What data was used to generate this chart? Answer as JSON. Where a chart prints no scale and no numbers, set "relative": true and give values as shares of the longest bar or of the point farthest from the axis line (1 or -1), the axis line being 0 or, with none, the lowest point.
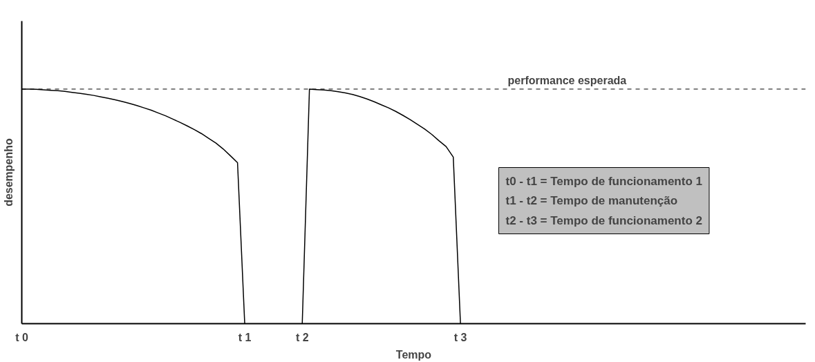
{
  "chart_data": {
    "type": "line",
    "relative": true,
    "ylabel": "desempenho",
    "xlabel": "Tempo",
    "categories": [
      "t 0",
      null,
      null,
      null,
      null,
      null,
      null,
      null,
      null,
      null,
      null,
      null,
      null,
      null,
      null,
      null,
      null,
      null,
      null,
      null,
      null,
      null,
      null,
      null,
      null,
      null,
      null,
      null,
      null,
      null,
      null,
      "t 1",
      null,
      null,
      null,
      null,
      null,
      null,
      null,
      "t 2",
      null,
      null,
      null,
      null,
      null,
      null,
      null,
      null,
      null,
      null,
      null,
      null,
      null,
      null,
      null,
      null,
      null,
      null,
      null,
      null,
      null,
      "t 3",
      null,
      null,
      null,
      null,
      null,
      null,
      null,
      null,
      null,
      null,
      null,
      null,
      null,
      null,
      null,
      null,
      null,
      null,
      null,
      null,
      null,
      null,
      null,
      null,
      null,
      null,
      null,
      null,
      null,
      null,
      null,
      null,
      null,
      null,
      null,
      null,
      null,
      null,
      null,
      null,
      null,
      null,
      null,
      null,
      null,
      null,
      null,
      null
    ],
    "series": [
      {
        "color": "#000000",
        "values": [
          1,
          1,
          0.999,
          0.997,
          0.995,
          0.993,
          0.99,
          0.986,
          0.982,
          0.978,
          0.973,
          0.967,
          0.961,
          0.954,
          0.947,
          0.939,
          0.93,
          0.92,
          0.91,
          0.898,
          0.886,
          0.872,
          0.858,
          0.843,
          0.827,
          0.81,
          0.79,
          0.77,
          0.745,
          0.716,
          0.686,
          0,
          null,
          null,
          null,
          null,
          null,
          null,
          null,
          null,
          null,
          null,
          null,
          null,
          null,
          null,
          null,
          null,
          null,
          null,
          null,
          null,
          null,
          null,
          null,
          null,
          null,
          null,
          null,
          null,
          null,
          null,
          null,
          null,
          null,
          null,
          null,
          null,
          null,
          null,
          null,
          null,
          null,
          null,
          null,
          null,
          null,
          null,
          null,
          null,
          null,
          null,
          null,
          null,
          null,
          null,
          null,
          null,
          null,
          null,
          null,
          null,
          null,
          null,
          null,
          null,
          null,
          null,
          null,
          null,
          null,
          null,
          null,
          null,
          null,
          null,
          null,
          null,
          null,
          null
        ]
      },
      {
        "color": "#000000",
        "values": [
          null,
          null,
          null,
          null,
          null,
          null,
          null,
          null,
          null,
          null,
          null,
          null,
          null,
          null,
          null,
          null,
          null,
          null,
          null,
          null,
          null,
          null,
          null,
          null,
          null,
          null,
          null,
          null,
          null,
          null,
          null,
          null,
          null,
          null,
          null,
          null,
          null,
          null,
          null,
          0,
          1,
          0.998,
          0.996,
          0.993,
          0.989,
          0.984,
          0.977,
          0.968,
          0.958,
          0.946,
          0.933,
          0.92,
          0.905,
          0.888,
          0.87,
          0.85,
          0.83,
          0.807,
          0.78,
          0.755,
          0.71,
          0,
          null,
          null,
          null,
          null,
          null,
          null,
          null,
          null,
          null,
          null,
          null,
          null,
          null,
          null,
          null,
          null,
          null,
          null,
          null,
          null,
          null,
          null,
          null,
          null,
          null,
          null,
          null,
          null,
          null,
          null,
          null,
          null,
          null,
          null,
          null,
          null,
          null,
          null,
          null,
          null,
          null,
          null,
          null,
          null,
          null,
          null,
          null,
          null
        ]
      }
    ],
    "ref_lines": [
      {
        "axis": "y",
        "value": 1,
        "label": "performance esperada",
        "line_style": "dashed",
        "color": "#000000"
      }
    ],
    "annotations": [
      "t0 - t1 = Tempo de funcionamento 1\nt1 - t2 = Tempo de manutenção\nt2 - t3 = Tempo de funcionamento 2"
    ],
    "grid": false,
    "line_style": "solid",
    "marker": "none"
  }
}
